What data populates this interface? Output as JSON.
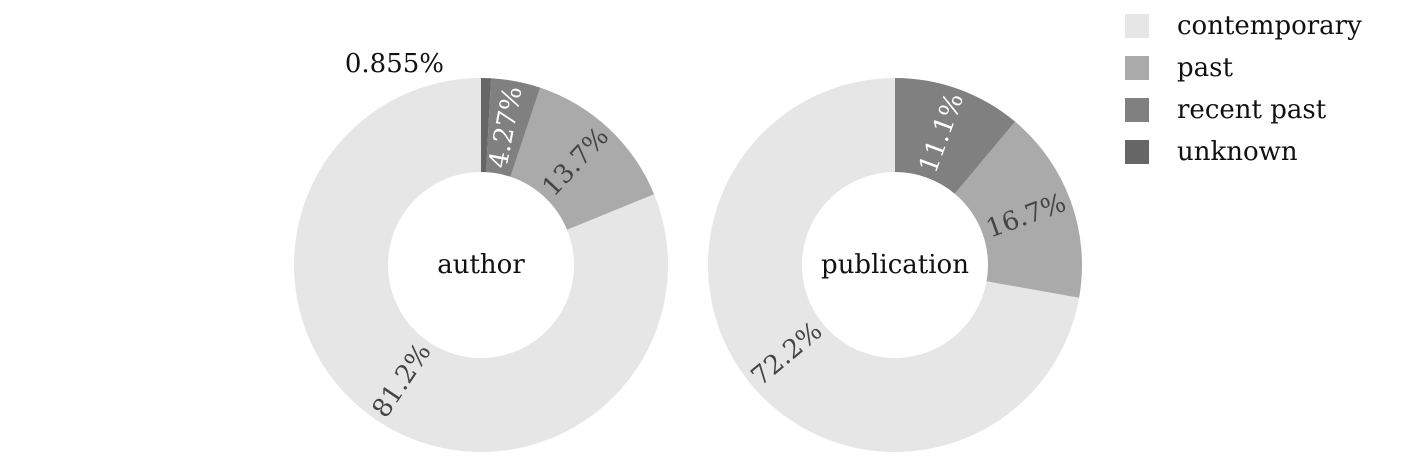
{
  "chart_data": {
    "type": "donut",
    "legend": {
      "placement": "top-right",
      "entries": [
        {
          "label": "contemporary",
          "color": "#e6e6e6"
        },
        {
          "label": "past",
          "color": "#aaaaaa"
        },
        {
          "label": "recent past",
          "color": "#808080"
        },
        {
          "label": "unknown",
          "color": "#666666"
        }
      ]
    },
    "charts": [
      {
        "center_label": "author",
        "slices": [
          {
            "category": "contemporary",
            "value": 81.2,
            "label": "81.2%"
          },
          {
            "category": "past",
            "value": 13.7,
            "label": "13.7%"
          },
          {
            "category": "recent past",
            "value": 4.27,
            "label": "4.27%"
          },
          {
            "category": "unknown",
            "value": 0.855,
            "label": "0.855%"
          }
        ]
      },
      {
        "center_label": "publication",
        "slices": [
          {
            "category": "contemporary",
            "value": 72.2,
            "label": "72.2%"
          },
          {
            "category": "past",
            "value": 16.7,
            "label": "16.7%"
          },
          {
            "category": "recent past",
            "value": 11.1,
            "label": "11.1%"
          }
        ]
      }
    ]
  }
}
